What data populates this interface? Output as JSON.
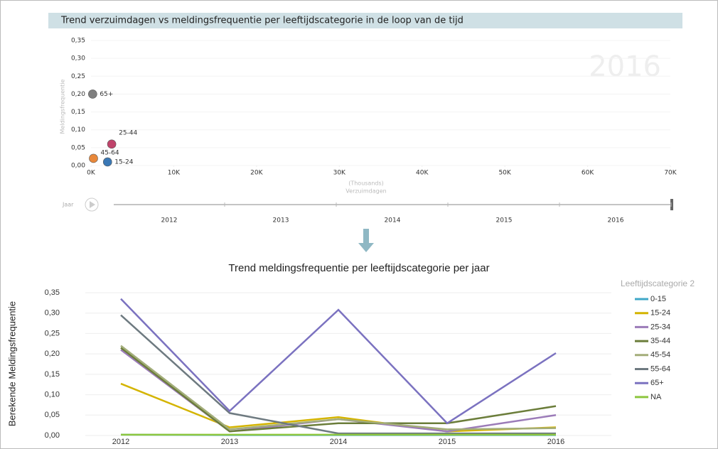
{
  "chart_data": [
    {
      "type": "scatter",
      "title": "Trend verzuimdagen vs meldingsfrequentie per leeftijdscategorie in de loop van de tijd",
      "xlabel_unit": "(Thousands)",
      "xlabel": "Verzuimdagen",
      "ylabel": "Meldingsfrequentie",
      "annotation": "2016",
      "xlim": [
        0,
        70
      ],
      "xticks": [
        {
          "value": 0,
          "label": "0K"
        },
        {
          "value": 10,
          "label": "10K"
        },
        {
          "value": 20,
          "label": "20K"
        },
        {
          "value": 30,
          "label": "30K"
        },
        {
          "value": 40,
          "label": "40K"
        },
        {
          "value": 50,
          "label": "50K"
        },
        {
          "value": 60,
          "label": "60K"
        },
        {
          "value": 70,
          "label": "70K"
        }
      ],
      "ylim": [
        0,
        0.35
      ],
      "yticks": [
        {
          "value": 0,
          "label": "0,00"
        },
        {
          "value": 0.05,
          "label": "0,05"
        },
        {
          "value": 0.1,
          "label": "0,10"
        },
        {
          "value": 0.15,
          "label": "0,15"
        },
        {
          "value": 0.2,
          "label": "0,20"
        },
        {
          "value": 0.25,
          "label": "0,25"
        },
        {
          "value": 0.3,
          "label": "0,30"
        },
        {
          "value": 0.35,
          "label": "0,35"
        }
      ],
      "grid": true,
      "series": [
        {
          "name": "65+",
          "color": "#7f7f7f",
          "x": [
            0.2
          ],
          "values": [
            0.2
          ]
        },
        {
          "name": "25-44",
          "color": "#c0436b",
          "x": [
            2.5
          ],
          "values": [
            0.06
          ]
        },
        {
          "name": "45-64",
          "color": "#e8883a",
          "x": [
            0.3
          ],
          "values": [
            0.02
          ]
        },
        {
          "name": "15-24",
          "color": "#3a78b5",
          "x": [
            2.0
          ],
          "values": [
            0.01
          ]
        }
      ],
      "play_axis": {
        "label": "Jaar",
        "categories": [
          "2012",
          "2013",
          "2014",
          "2015",
          "2016"
        ]
      }
    },
    {
      "type": "line",
      "title": "Trend meldingsfrequentie per leeftijdscategorie per jaar",
      "ylabel": "Berekende Meldingsfrequentie",
      "legend_title": "Leeftijdscategorie 2",
      "legend": "right",
      "categories": [
        "2012",
        "2013",
        "2014",
        "2015",
        "2016"
      ],
      "ylim": [
        0,
        0.35
      ],
      "yticks": [
        {
          "value": 0,
          "label": "0,00"
        },
        {
          "value": 0.05,
          "label": "0,05"
        },
        {
          "value": 0.1,
          "label": "0,10"
        },
        {
          "value": 0.15,
          "label": "0,15"
        },
        {
          "value": 0.2,
          "label": "0,20"
        },
        {
          "value": 0.25,
          "label": "0,25"
        },
        {
          "value": 0.3,
          "label": "0,30"
        },
        {
          "value": 0.35,
          "label": "0,35"
        }
      ],
      "grid": true,
      "series": [
        {
          "name": "0-15",
          "color": "#3fa7c7",
          "values": [
            0.002,
            0.001,
            0.001,
            0.001,
            0.001
          ]
        },
        {
          "name": "15-24",
          "color": "#d4b400",
          "values": [
            0.127,
            0.02,
            0.045,
            0.01,
            0.02
          ]
        },
        {
          "name": "25-34",
          "color": "#9b7bb8",
          "values": [
            0.21,
            0.01,
            0.04,
            0.01,
            0.05
          ]
        },
        {
          "name": "35-44",
          "color": "#6b7d3a",
          "values": [
            0.215,
            0.01,
            0.03,
            0.03,
            0.072
          ]
        },
        {
          "name": "45-54",
          "color": "#a3ad7a",
          "values": [
            0.22,
            0.015,
            0.04,
            0.015,
            0.018
          ]
        },
        {
          "name": "55-64",
          "color": "#6e7a80",
          "values": [
            0.295,
            0.055,
            0.005,
            0.005,
            0.005
          ]
        },
        {
          "name": "65+",
          "color": "#7b72c0",
          "values": [
            0.335,
            0.06,
            0.308,
            0.03,
            0.202
          ]
        },
        {
          "name": "NA",
          "color": "#8dc63f",
          "values": [
            0.002,
            0.002,
            0.002,
            0.002,
            0.002
          ]
        }
      ]
    }
  ]
}
